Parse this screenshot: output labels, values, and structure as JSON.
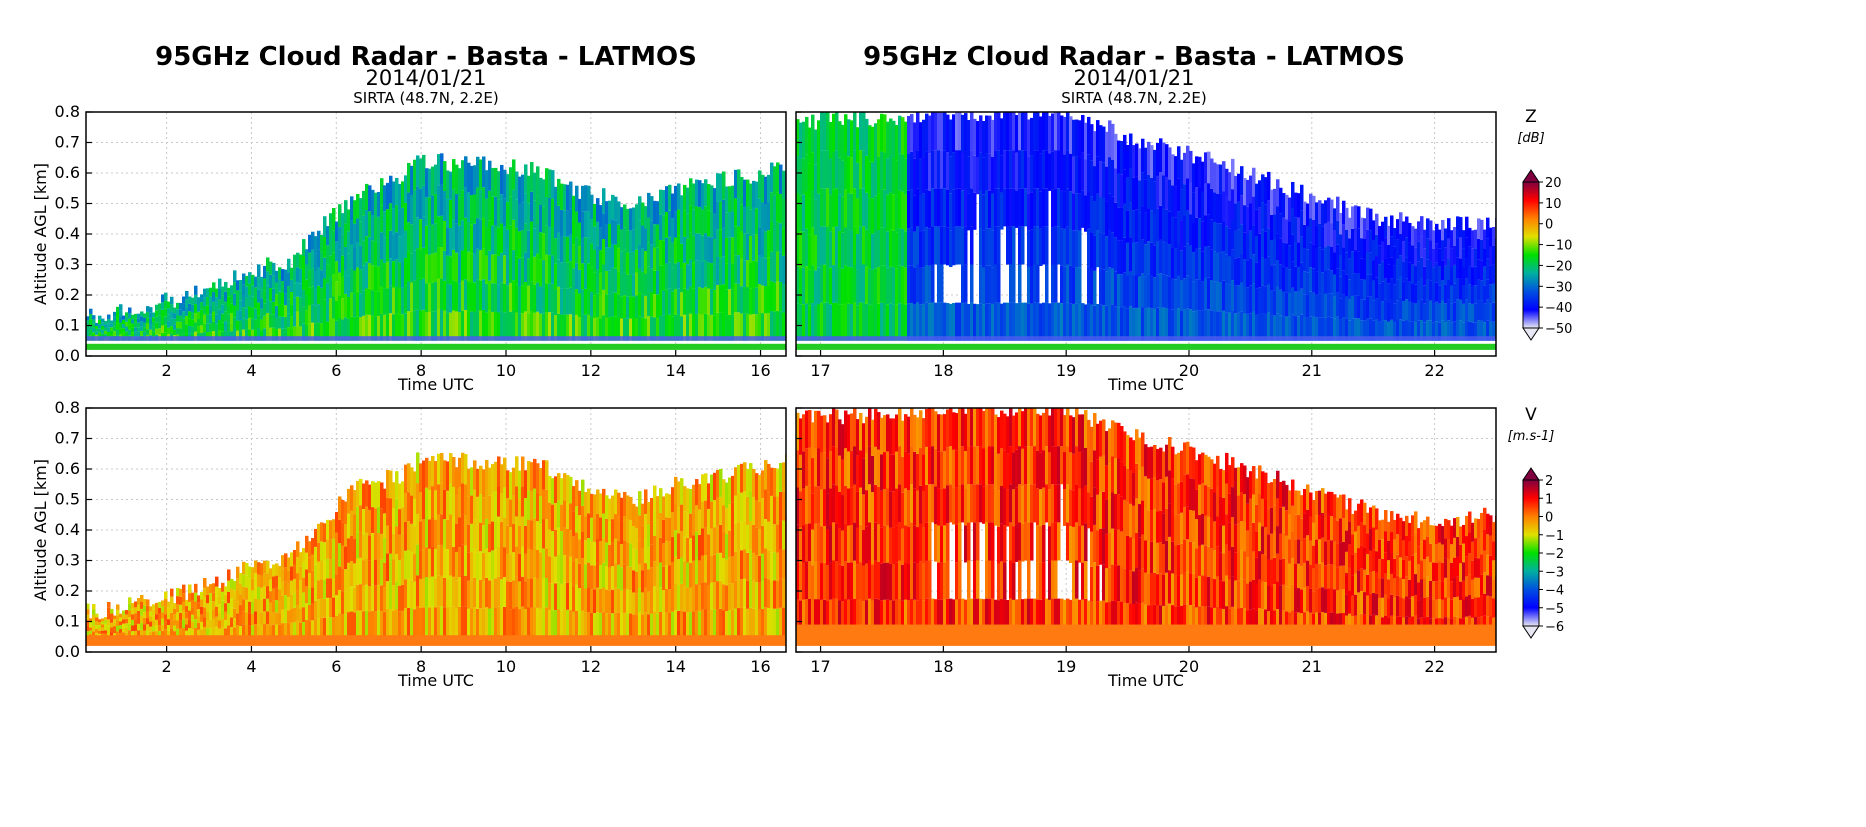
{
  "figure": {
    "title": "95GHz Cloud Radar - Basta - LATMOS",
    "date": "2014/01/21",
    "location": "SIRTA (48.7N, 2.2E)"
  },
  "chart_data": [
    {
      "type": "heatmap",
      "panel": "reflectivity-left",
      "title": "95GHz Cloud Radar - Basta - LATMOS",
      "subtitle": "2014/01/21",
      "location": "SIRTA (48.7N, 2.2E)",
      "xlabel": "Time UTC",
      "ylabel": "Altitude AGL [km]",
      "xlim": [
        0.1,
        16.6
      ],
      "ylim": [
        0.0,
        0.8
      ],
      "xticks": [
        2,
        4,
        6,
        8,
        10,
        12,
        14,
        16
      ],
      "yticks": [
        0.0,
        0.1,
        0.2,
        0.3,
        0.4,
        0.5,
        0.6,
        0.7,
        0.8
      ],
      "grid": true,
      "cloud_top_km": {
        "time_utc": [
          0.1,
          1,
          2,
          3,
          4,
          5,
          5.5,
          6,
          6.5,
          7,
          7.5,
          8,
          9,
          10,
          11,
          11.5,
          12,
          13,
          14,
          15,
          16,
          16.6
        ],
        "top": [
          0.13,
          0.15,
          0.18,
          0.22,
          0.28,
          0.32,
          0.4,
          0.47,
          0.54,
          0.56,
          0.58,
          0.64,
          0.63,
          0.62,
          0.6,
          0.55,
          0.53,
          0.5,
          0.55,
          0.58,
          0.6,
          0.62
        ]
      },
      "typical_core_dBZ": -15
    },
    {
      "type": "heatmap",
      "panel": "reflectivity-right",
      "title": "95GHz Cloud Radar - Basta - LATMOS",
      "subtitle": "2014/01/21",
      "location": "SIRTA (48.7N, 2.2E)",
      "xlabel": "Time UTC",
      "xlim": [
        16.8,
        22.5
      ],
      "ylim": [
        0.0,
        0.8
      ],
      "xticks": [
        17,
        18,
        19,
        20,
        21,
        22
      ],
      "yticks": [
        0.0,
        0.1,
        0.2,
        0.3,
        0.4,
        0.5,
        0.6,
        0.7,
        0.8
      ],
      "grid": true,
      "cloud_top_km": {
        "time_utc": [
          16.8,
          17.5,
          18,
          18.5,
          19,
          19.5,
          20,
          20.5,
          21,
          21.5,
          22,
          22.5
        ],
        "top": [
          0.77,
          0.78,
          0.8,
          0.8,
          0.8,
          0.72,
          0.66,
          0.6,
          0.52,
          0.46,
          0.42,
          0.45
        ]
      },
      "typical_core_dBZ": -30
    },
    {
      "type": "heatmap",
      "panel": "velocity-left",
      "xlabel": "Time UTC",
      "ylabel": "Altitude AGL [km]",
      "xlim": [
        0.1,
        16.6
      ],
      "ylim": [
        0.0,
        0.8
      ],
      "xticks": [
        2,
        4,
        6,
        8,
        10,
        12,
        14,
        16
      ],
      "yticks": [
        0.0,
        0.1,
        0.2,
        0.3,
        0.4,
        0.5,
        0.6,
        0.7,
        0.8
      ],
      "grid": true,
      "cloud_top_km": {
        "time_utc": [
          0.1,
          1,
          2,
          3,
          4,
          5,
          5.5,
          6,
          6.5,
          7,
          7.5,
          8,
          9,
          10,
          11,
          11.5,
          12,
          13,
          14,
          15,
          16,
          16.6
        ],
        "top": [
          0.13,
          0.15,
          0.18,
          0.22,
          0.28,
          0.32,
          0.4,
          0.47,
          0.54,
          0.56,
          0.58,
          0.64,
          0.63,
          0.62,
          0.6,
          0.55,
          0.53,
          0.5,
          0.55,
          0.58,
          0.6,
          0.62
        ]
      },
      "typical_velocity_ms": 0
    },
    {
      "type": "heatmap",
      "panel": "velocity-right",
      "xlabel": "Time UTC",
      "xlim": [
        16.8,
        22.5
      ],
      "ylim": [
        0.0,
        0.8
      ],
      "xticks": [
        17,
        18,
        19,
        20,
        21,
        22
      ],
      "yticks": [
        0.0,
        0.1,
        0.2,
        0.3,
        0.4,
        0.5,
        0.6,
        0.7,
        0.8
      ],
      "grid": true,
      "cloud_top_km": {
        "time_utc": [
          16.8,
          17.5,
          18,
          18.5,
          19,
          19.5,
          20,
          20.5,
          21,
          21.5,
          22,
          22.5
        ],
        "top": [
          0.77,
          0.78,
          0.8,
          0.8,
          0.8,
          0.72,
          0.66,
          0.6,
          0.52,
          0.46,
          0.42,
          0.45
        ]
      },
      "typical_velocity_ms": 1
    }
  ],
  "colorbars": [
    {
      "label": "Z",
      "units": "[dB]",
      "range": [
        -50,
        20
      ],
      "ticks": [
        20,
        10,
        0,
        -10,
        -20,
        -30,
        -40,
        -50
      ],
      "colors": [
        "#e8e8f4",
        "#0000ff",
        "#0050e0",
        "#00b0a0",
        "#00e000",
        "#e0e000",
        "#ff8000",
        "#ff0000",
        "#800040"
      ]
    },
    {
      "label": "V",
      "units": "[m.s-1]",
      "range": [
        -6,
        2
      ],
      "ticks": [
        2,
        1,
        0,
        -1,
        -2,
        -3,
        -4,
        -5,
        -6
      ],
      "colors": [
        "#e8e8f4",
        "#0000ff",
        "#0050e0",
        "#00b0a0",
        "#00e000",
        "#e0e000",
        "#ff8000",
        "#ff0000",
        "#800040"
      ]
    }
  ]
}
